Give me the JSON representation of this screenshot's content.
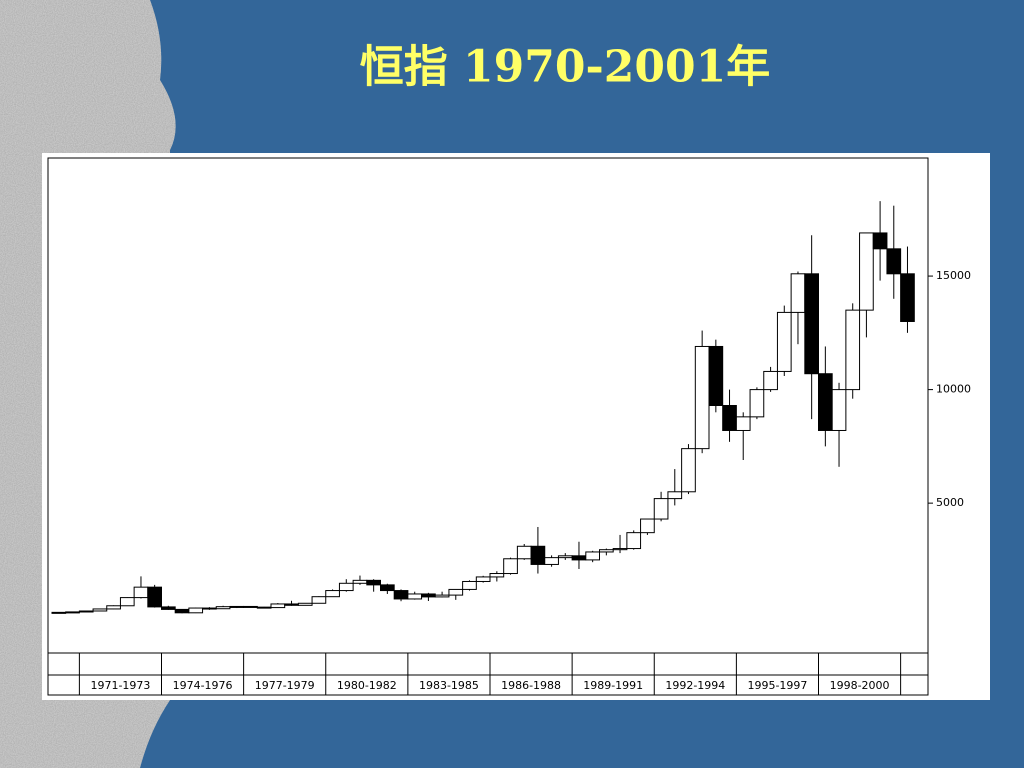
{
  "chart_data": {
    "type": "candlestick",
    "title": "恒指 1970-2001年",
    "x": [
      1970.25,
      1970.75,
      1971.25,
      1971.75,
      1972.25,
      1972.75,
      1973.25,
      1973.75,
      1974.25,
      1974.75,
      1975.25,
      1975.75,
      1976.25,
      1976.75,
      1977.25,
      1977.75,
      1978.25,
      1978.75,
      1979.25,
      1979.75,
      1980.25,
      1980.75,
      1981.25,
      1981.75,
      1982.25,
      1982.75,
      1983.25,
      1983.75,
      1984.25,
      1984.75,
      1985.25,
      1985.75,
      1986.25,
      1986.75,
      1987.25,
      1987.75,
      1988.25,
      1988.75,
      1989.25,
      1989.75,
      1990.25,
      1990.75,
      1991.25,
      1991.75,
      1992.25,
      1992.75,
      1993.25,
      1993.75,
      1994.25,
      1994.75,
      1995.25,
      1995.75,
      1996.25,
      1996.75,
      1997.25,
      1997.75,
      1998.25,
      1998.75,
      1999.25,
      1999.75,
      2000.25,
      2000.75,
      2001.25
    ],
    "open": [
      180,
      190,
      210,
      250,
      340,
      480,
      840,
      1300,
      430,
      320,
      170,
      380,
      350,
      440,
      450,
      420,
      400,
      560,
      500,
      590,
      880,
      1150,
      1470,
      1600,
      1400,
      1150,
      780,
      1000,
      870,
      950,
      1200,
      1550,
      1750,
      1900,
      2550,
      3100,
      2300,
      2600,
      2680,
      2500,
      2850,
      2950,
      3000,
      3700,
      4300,
      5200,
      5500,
      7400,
      11900,
      9300,
      8200,
      8800,
      10000,
      10800,
      13400,
      15100,
      10700,
      8200,
      10000,
      13500,
      16900,
      16200,
      15100
    ],
    "high": [
      200,
      220,
      260,
      340,
      500,
      850,
      1775,
      1400,
      480,
      330,
      400,
      420,
      480,
      470,
      460,
      430,
      600,
      700,
      600,
      900,
      1200,
      1650,
      1810,
      1650,
      1450,
      1200,
      1100,
      1050,
      1100,
      1200,
      1600,
      1800,
      2000,
      2600,
      3200,
      3950,
      2700,
      2800,
      3300,
      2900,
      3000,
      3600,
      3800,
      4300,
      5500,
      6500,
      7600,
      12600,
      12200,
      10000,
      9000,
      10100,
      11000,
      13700,
      15200,
      16800,
      11900,
      10300,
      13800,
      16900,
      18300,
      18100,
      16300
    ],
    "low": [
      170,
      180,
      200,
      240,
      330,
      470,
      800,
      400,
      300,
      150,
      160,
      300,
      340,
      380,
      400,
      380,
      390,
      480,
      490,
      580,
      870,
      1100,
      1400,
      1100,
      1000,
      680,
      750,
      690,
      850,
      740,
      1150,
      1500,
      1550,
      1850,
      2500,
      1900,
      2200,
      2500,
      2100,
      2400,
      2700,
      2800,
      2950,
      3600,
      4200,
      4900,
      5400,
      7200,
      9000,
      7700,
      6900,
      8700,
      9900,
      10600,
      12000,
      8700,
      7500,
      6600,
      9600,
      12300,
      14800,
      14000,
      12500
    ],
    "close": [
      190,
      210,
      250,
      340,
      480,
      840,
      1300,
      430,
      320,
      170,
      380,
      350,
      440,
      450,
      420,
      400,
      560,
      500,
      590,
      880,
      1150,
      1470,
      1600,
      1400,
      1150,
      780,
      1000,
      870,
      950,
      1200,
      1550,
      1750,
      1900,
      2550,
      3100,
      2300,
      2600,
      2680,
      2500,
      2850,
      2950,
      3000,
      3700,
      4300,
      5200,
      5500,
      7400,
      11900,
      9300,
      8200,
      8800,
      10000,
      10800,
      13400,
      15100,
      10700,
      8200,
      10000,
      13500,
      16900,
      16200,
      15100,
      13000
    ],
    "up_color": "#ffffff",
    "down_color": "#000000",
    "xlim": [
      1970,
      2002
    ],
    "ylim": [
      -1600,
      20200
    ],
    "yticks": [
      5000,
      10000,
      15000
    ],
    "x_groups": [
      "1971-1973",
      "1974-1976",
      "1977-1979",
      "1980-1982",
      "1983-1985",
      "1986-1988",
      "1989-1991",
      "1992-1994",
      "1995-1997",
      "1998-2000"
    ]
  }
}
